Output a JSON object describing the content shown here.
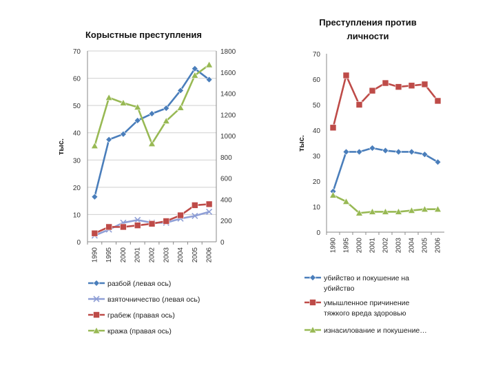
{
  "colors": {
    "blue": "#4a7ebb",
    "lavender": "#8f9fd6",
    "red": "#be4b48",
    "green": "#98b954"
  },
  "chart_data": [
    {
      "type": "line",
      "title": "Корыстные преступления",
      "ylabel": "тыс.",
      "categories": [
        "1990",
        "1995",
        "2000",
        "2001",
        "2002",
        "2003",
        "2004",
        "2005",
        "2006"
      ],
      "ylim_left": [
        0,
        70
      ],
      "yticks_left": [
        "0",
        "10",
        "20",
        "30",
        "40",
        "50",
        "60",
        "70"
      ],
      "ylim_right": [
        0,
        1800
      ],
      "yticks_right": [
        "0",
        "200",
        "400",
        "600",
        "800",
        "1000",
        "1200",
        "1400",
        "1600",
        "1800"
      ],
      "grid": true,
      "legend_position": "bottom",
      "series": [
        {
          "name": "разбой (левая ось)",
          "axis": "left",
          "marker": "diamond",
          "color": "blue",
          "values": [
            16.5,
            37.5,
            39.5,
            44.5,
            47,
            49,
            55.5,
            63.5,
            59.5
          ]
        },
        {
          "name": "взяточничество (левая ось)",
          "axis": "left",
          "marker": "x",
          "color": "lavender",
          "values": [
            2.3,
            4.5,
            7,
            8,
            7,
            7,
            8.5,
            9.5,
            11
          ]
        },
        {
          "name": "грабеж (правая ось)",
          "axis": "right",
          "marker": "square",
          "color": "red",
          "values": [
            80,
            140,
            140,
            155,
            170,
            195,
            250,
            345,
            355
          ]
        },
        {
          "name": "кража (правая ось)",
          "axis": "right",
          "marker": "triangle",
          "color": "green",
          "values": [
            905,
            1360,
            1310,
            1270,
            925,
            1140,
            1265,
            1570,
            1670
          ]
        }
      ]
    },
    {
      "type": "line",
      "title_lines": [
        "Преступления против",
        "личности"
      ],
      "ylabel": "тыс.",
      "categories": [
        "1990",
        "1995",
        "2000",
        "2001",
        "2002",
        "2003",
        "2004",
        "2005",
        "2006"
      ],
      "ylim": [
        0,
        70
      ],
      "yticks": [
        "0",
        "10",
        "20",
        "30",
        "40",
        "50",
        "60",
        "70"
      ],
      "grid": false,
      "legend_position": "bottom",
      "series": [
        {
          "name_lines": [
            "убийство и покушение на",
            "убийство"
          ],
          "marker": "diamond",
          "color": "blue",
          "values": [
            16,
            31.5,
            31.5,
            33,
            32,
            31.5,
            31.5,
            30.5,
            27.5
          ]
        },
        {
          "name_lines": [
            "умышленное причинение",
            "тяжкого вреда здоровью"
          ],
          "marker": "square",
          "color": "red",
          "values": [
            41,
            61.5,
            50,
            55.5,
            58.5,
            57,
            57.5,
            58,
            51.5
          ]
        },
        {
          "name_lines": [
            "изнасилование и покушение…"
          ],
          "marker": "triangle",
          "color": "green",
          "values": [
            14.5,
            12,
            7.5,
            8,
            8,
            8,
            8.5,
            9,
            9
          ]
        }
      ]
    }
  ]
}
